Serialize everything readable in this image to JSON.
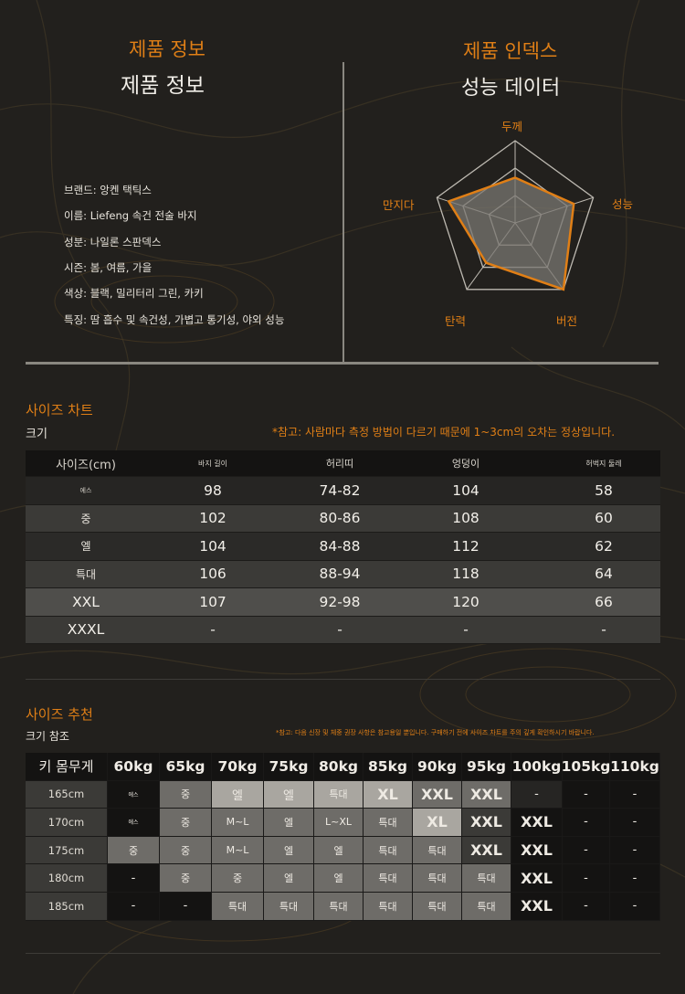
{
  "header": {
    "left_title_orange": "제품 정보",
    "left_title_white": "제품 정보",
    "right_title_orange": "제품 인덱스",
    "right_title_white": "성능 데이터"
  },
  "product_info": [
    "브랜드: 앙켄 택틱스",
    "이름: Liefeng 속건 전술 바지",
    "성분: 나일론 스판덱스",
    "시즌: 봄, 여름, 가을",
    "색상: 블랙, 밀리터리 그린, 카키",
    "특징: 땀 흡수 및 속건성, 가볍고 통기성, 야외 성능"
  ],
  "radar": {
    "labels": [
      "두께",
      "성능",
      "버전",
      "탄력",
      "만지다"
    ],
    "values": [
      0.55,
      0.75,
      1.0,
      0.6,
      0.85
    ],
    "levels": 3,
    "fill_color": "#7a7772",
    "stroke_color": "#e07f16",
    "grid_color": "#bdb9b1"
  },
  "size_chart": {
    "title": "사이즈 차트",
    "subtitle": "크기",
    "note": "*참고: 사람마다 측정 방법이 다르기 때문에 1~3cm의 오차는 정상입니다.",
    "headers": [
      "사이즈(cm)",
      "바지 길이",
      "허리띠",
      "엉덩이",
      "허벅지 둘레"
    ],
    "rows": [
      {
        "size": "에스",
        "cells": [
          "98",
          "74-82",
          "104",
          "58"
        ]
      },
      {
        "size": "중",
        "cells": [
          "102",
          "80-86",
          "108",
          "60"
        ]
      },
      {
        "size": "엘",
        "cells": [
          "104",
          "84-88",
          "112",
          "62"
        ]
      },
      {
        "size": "특대",
        "cells": [
          "106",
          "88-94",
          "118",
          "64"
        ]
      },
      {
        "size": "XXL",
        "cells": [
          "107",
          "92-98",
          "120",
          "66"
        ]
      },
      {
        "size": "XXXL",
        "cells": [
          "-",
          "-",
          "-",
          "-"
        ]
      }
    ],
    "row_colors": [
      "#262523",
      "#3b3a37",
      "#2b2a28",
      "#3b3a37",
      "#4f4e4b",
      "#3b3a37"
    ]
  },
  "size_recommend": {
    "title": "사이즈 추천",
    "subtitle": "크기 참조",
    "note": "*참고: 다음 신장 및 체중 권장 사항은 참고용일 뿐입니다. 구매하기 전에 사이즈 차트를 주의 깊게 확인하시기 바랍니다.",
    "corner": "키 몸무게",
    "weights": [
      "60kg",
      "65kg",
      "70kg",
      "75kg",
      "80kg",
      "85kg",
      "90kg",
      "95kg",
      "100kg",
      "105kg",
      "110kg"
    ],
    "rows": [
      {
        "height": "165cm",
        "cells": [
          {
            "t": "에스",
            "c": "#141312",
            "s": "xs"
          },
          {
            "t": "중",
            "c": "#6e6c68",
            "s": "sm"
          },
          {
            "t": "엘",
            "c": "#a9a6a0",
            "s": "md"
          },
          {
            "t": "엘",
            "c": "#a9a6a0",
            "s": "md"
          },
          {
            "t": "특대",
            "c": "#a9a6a0",
            "s": "sm"
          },
          {
            "t": "XL",
            "c": "#a9a6a0",
            "s": "lg"
          },
          {
            "t": "XXL",
            "c": "#6e6c68",
            "s": "lg"
          },
          {
            "t": "XXL",
            "c": "#6e6c68",
            "s": "lg"
          },
          {
            "t": "-",
            "c": "#262523",
            "s": "md"
          },
          {
            "t": "-",
            "c": "#141312",
            "s": "md"
          },
          {
            "t": "-",
            "c": "#141312",
            "s": "md"
          }
        ]
      },
      {
        "height": "170cm",
        "cells": [
          {
            "t": "에스",
            "c": "#141312",
            "s": "xs"
          },
          {
            "t": "중",
            "c": "#6e6c68",
            "s": "sm"
          },
          {
            "t": "M~L",
            "c": "#6e6c68",
            "s": "sm"
          },
          {
            "t": "엘",
            "c": "#6e6c68",
            "s": "sm"
          },
          {
            "t": "L~XL",
            "c": "#6e6c68",
            "s": "sm"
          },
          {
            "t": "특대",
            "c": "#6e6c68",
            "s": "sm"
          },
          {
            "t": "XL",
            "c": "#a9a6a0",
            "s": "lg"
          },
          {
            "t": "XXL",
            "c": "#3b3a37",
            "s": "lg"
          },
          {
            "t": "XXL",
            "c": "#141312",
            "s": "lg"
          },
          {
            "t": "-",
            "c": "#141312",
            "s": "md"
          },
          {
            "t": "-",
            "c": "#141312",
            "s": "md"
          }
        ]
      },
      {
        "height": "175cm",
        "cells": [
          {
            "t": "중",
            "c": "#6e6c68",
            "s": "sm"
          },
          {
            "t": "중",
            "c": "#6e6c68",
            "s": "sm"
          },
          {
            "t": "M~L",
            "c": "#6e6c68",
            "s": "sm"
          },
          {
            "t": "엘",
            "c": "#6e6c68",
            "s": "sm"
          },
          {
            "t": "엘",
            "c": "#6e6c68",
            "s": "sm"
          },
          {
            "t": "특대",
            "c": "#6e6c68",
            "s": "sm"
          },
          {
            "t": "특대",
            "c": "#6e6c68",
            "s": "sm"
          },
          {
            "t": "XXL",
            "c": "#3b3a37",
            "s": "lg"
          },
          {
            "t": "XXL",
            "c": "#141312",
            "s": "lg"
          },
          {
            "t": "-",
            "c": "#141312",
            "s": "md"
          },
          {
            "t": "-",
            "c": "#141312",
            "s": "md"
          }
        ]
      },
      {
        "height": "180cm",
        "cells": [
          {
            "t": "-",
            "c": "#141312",
            "s": "md"
          },
          {
            "t": "중",
            "c": "#6e6c68",
            "s": "sm"
          },
          {
            "t": "중",
            "c": "#6e6c68",
            "s": "sm"
          },
          {
            "t": "엘",
            "c": "#6e6c68",
            "s": "sm"
          },
          {
            "t": "엘",
            "c": "#6e6c68",
            "s": "sm"
          },
          {
            "t": "특대",
            "c": "#6e6c68",
            "s": "sm"
          },
          {
            "t": "특대",
            "c": "#6e6c68",
            "s": "sm"
          },
          {
            "t": "특대",
            "c": "#6e6c68",
            "s": "sm"
          },
          {
            "t": "XXL",
            "c": "#141312",
            "s": "lg"
          },
          {
            "t": "-",
            "c": "#141312",
            "s": "md"
          },
          {
            "t": "-",
            "c": "#141312",
            "s": "md"
          }
        ]
      },
      {
        "height": "185cm",
        "cells": [
          {
            "t": "-",
            "c": "#141312",
            "s": "md"
          },
          {
            "t": "-",
            "c": "#141312",
            "s": "md"
          },
          {
            "t": "특대",
            "c": "#6e6c68",
            "s": "sm"
          },
          {
            "t": "특대",
            "c": "#6e6c68",
            "s": "sm"
          },
          {
            "t": "특대",
            "c": "#6e6c68",
            "s": "sm"
          },
          {
            "t": "특대",
            "c": "#6e6c68",
            "s": "sm"
          },
          {
            "t": "특대",
            "c": "#6e6c68",
            "s": "sm"
          },
          {
            "t": "특대",
            "c": "#6e6c68",
            "s": "sm"
          },
          {
            "t": "XXL",
            "c": "#141312",
            "s": "lg"
          },
          {
            "t": "-",
            "c": "#141312",
            "s": "md"
          },
          {
            "t": "-",
            "c": "#141312",
            "s": "md"
          }
        ]
      }
    ]
  }
}
